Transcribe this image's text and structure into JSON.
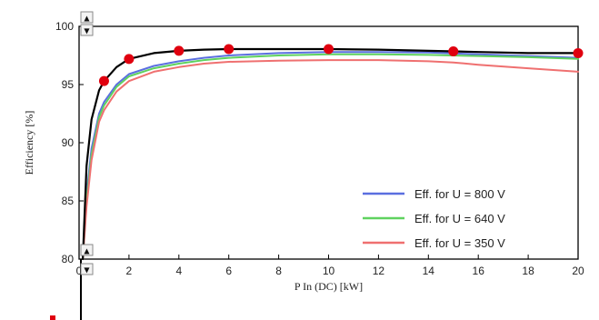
{
  "chart_data": {
    "type": "line",
    "xlabel": "P In (DC) [kW]",
    "ylabel": "Efficiency [%]",
    "xlim": [
      0,
      20
    ],
    "ylim": [
      80,
      100
    ],
    "xticks": [
      0,
      2,
      4,
      6,
      8,
      10,
      12,
      14,
      16,
      18,
      20
    ],
    "yticks": [
      80,
      85,
      90,
      95,
      100
    ],
    "grid": false,
    "legend_position": "bottom-right",
    "series": [
      {
        "name": "",
        "color": "#000000",
        "x": [
          0.15,
          0.3,
          0.5,
          0.8,
          1.0,
          1.5,
          2.0,
          3.0,
          4.0,
          5.0,
          6.0,
          8.0,
          10.0,
          12.0,
          14.0,
          15.0,
          16.0,
          18.0,
          20.0
        ],
        "y": [
          80.0,
          88.0,
          92.0,
          94.5,
          95.3,
          96.5,
          97.2,
          97.7,
          97.9,
          98.0,
          98.05,
          98.05,
          98.05,
          98.0,
          97.9,
          97.85,
          97.8,
          97.7,
          97.7
        ]
      },
      {
        "name": "Eff. for U = 800 V",
        "color": "#5b6fe0",
        "x": [
          0.15,
          0.3,
          0.5,
          0.8,
          1.0,
          1.5,
          2.0,
          3.0,
          4.0,
          5.0,
          6.0,
          8.0,
          10.0,
          12.0,
          14.0,
          16.0,
          18.0,
          20.0
        ],
        "y": [
          80.0,
          85.5,
          89.5,
          92.5,
          93.5,
          95.0,
          95.9,
          96.6,
          97.0,
          97.3,
          97.5,
          97.7,
          97.8,
          97.8,
          97.75,
          97.6,
          97.45,
          97.3
        ]
      },
      {
        "name": "Eff. for U = 640 V",
        "color": "#5fd25f",
        "x": [
          0.15,
          0.3,
          0.5,
          0.8,
          1.0,
          1.5,
          2.0,
          3.0,
          4.0,
          5.0,
          6.0,
          8.0,
          10.0,
          12.0,
          14.0,
          16.0,
          18.0,
          20.0
        ],
        "y": [
          80.0,
          85.0,
          89.0,
          92.2,
          93.2,
          94.8,
          95.7,
          96.4,
          96.8,
          97.1,
          97.3,
          97.5,
          97.6,
          97.6,
          97.55,
          97.45,
          97.35,
          97.2
        ]
      },
      {
        "name": "Eff. for U = 350 V",
        "color": "#ef7070",
        "x": [
          0.15,
          0.3,
          0.5,
          0.8,
          1.0,
          1.5,
          2.0,
          3.0,
          4.0,
          5.0,
          6.0,
          8.0,
          10.0,
          12.0,
          14.0,
          15.0,
          16.0,
          18.0,
          20.0
        ],
        "y": [
          80.0,
          84.5,
          88.5,
          91.8,
          92.8,
          94.4,
          95.3,
          96.1,
          96.5,
          96.8,
          96.95,
          97.05,
          97.1,
          97.1,
          97.0,
          96.9,
          96.7,
          96.4,
          96.1
        ]
      }
    ],
    "markers": {
      "color": "#e0000f",
      "x": [
        1,
        2,
        4,
        6,
        10,
        15,
        20
      ],
      "y": [
        95.3,
        97.2,
        97.9,
        98.05,
        98.05,
        97.85,
        97.7
      ]
    },
    "spinners": [
      {
        "icon": "spin-up-icon",
        "symbol": "▲"
      },
      {
        "icon": "spin-down-icon",
        "symbol": "▼"
      }
    ]
  }
}
